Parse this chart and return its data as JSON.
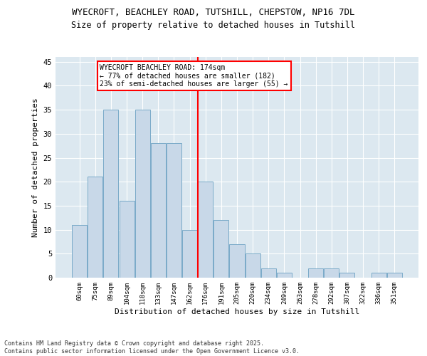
{
  "title1": "WYECROFT, BEACHLEY ROAD, TUTSHILL, CHEPSTOW, NP16 7DL",
  "title2": "Size of property relative to detached houses in Tutshill",
  "xlabel": "Distribution of detached houses by size in Tutshill",
  "ylabel": "Number of detached properties",
  "categories": [
    "60sqm",
    "75sqm",
    "89sqm",
    "104sqm",
    "118sqm",
    "133sqm",
    "147sqm",
    "162sqm",
    "176sqm",
    "191sqm",
    "205sqm",
    "220sqm",
    "234sqm",
    "249sqm",
    "263sqm",
    "278sqm",
    "292sqm",
    "307sqm",
    "322sqm",
    "336sqm",
    "351sqm"
  ],
  "values": [
    11,
    21,
    35,
    16,
    35,
    28,
    28,
    10,
    20,
    12,
    7,
    5,
    2,
    1,
    0,
    2,
    2,
    1,
    0,
    1,
    1
  ],
  "bar_color": "#c8d8e8",
  "bar_edge_color": "#7aaac8",
  "vline_color": "red",
  "annotation_title": "WYECROFT BEACHLEY ROAD: 174sqm",
  "annotation_line2": "← 77% of detached houses are smaller (182)",
  "annotation_line3": "23% of semi-detached houses are larger (55) →",
  "ylim": [
    0,
    46
  ],
  "yticks": [
    0,
    5,
    10,
    15,
    20,
    25,
    30,
    35,
    40,
    45
  ],
  "background_color": "#dce8f0",
  "footer1": "Contains HM Land Registry data © Crown copyright and database right 2025.",
  "footer2": "Contains public sector information licensed under the Open Government Licence v3.0."
}
